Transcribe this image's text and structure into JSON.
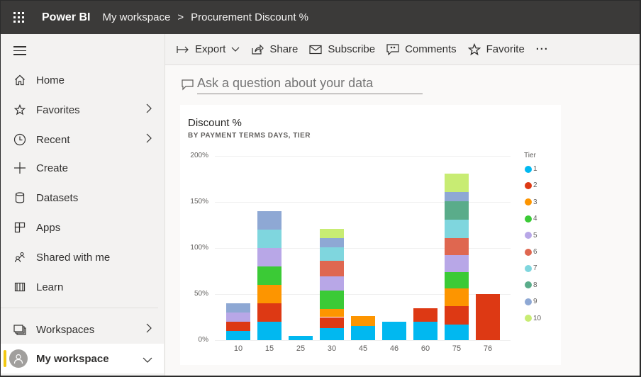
{
  "header": {
    "app_icon": "waffle-icon",
    "brand": "Power BI",
    "breadcrumb": [
      "My workspace",
      "Procurement Discount %"
    ],
    "separator": ">"
  },
  "sidebar": {
    "menu_icon": "hamburger-icon",
    "items": [
      {
        "label": "Home",
        "icon": "home-icon",
        "chevron": false
      },
      {
        "label": "Favorites",
        "icon": "star-icon",
        "chevron": true
      },
      {
        "label": "Recent",
        "icon": "clock-icon",
        "chevron": true
      },
      {
        "label": "Create",
        "icon": "plus-icon",
        "chevron": false
      },
      {
        "label": "Datasets",
        "icon": "database-icon",
        "chevron": false
      },
      {
        "label": "Apps",
        "icon": "apps-icon",
        "chevron": false
      },
      {
        "label": "Shared with me",
        "icon": "people-icon",
        "chevron": false
      },
      {
        "label": "Learn",
        "icon": "book-icon",
        "chevron": false
      }
    ],
    "workspaces_label": "Workspaces",
    "my_workspace_label": "My workspace"
  },
  "toolbar": {
    "export": "Export",
    "share": "Share",
    "subscribe": "Subscribe",
    "comments": "Comments",
    "favorite": "Favorite",
    "more": "···"
  },
  "qa": {
    "placeholder": "Ask a question about your data"
  },
  "colors": {
    "tier_1": "#01b8f0",
    "tier_2": "#dd3914",
    "tier_3": "#fd9500",
    "tier_4": "#3bca36",
    "tier_5": "#b8a7e7",
    "tier_6": "#df6750",
    "tier_7": "#7fd6de",
    "tier_8": "#5aac8a",
    "tier_9": "#8ea8d4",
    "tier_10": "#c8ec73"
  },
  "chart_data": {
    "type": "bar",
    "stacked": true,
    "title": "Discount %",
    "subtitle": "BY PAYMENT TERMS DAYS, TIER",
    "xlabel": "Payment Terms Days",
    "ylabel": "Discount %",
    "ylim": [
      0,
      200
    ],
    "yticks": [
      "0%",
      "50%",
      "100%",
      "150%",
      "200%"
    ],
    "grid": true,
    "legend_title": "Tier",
    "legend_position": "right",
    "categories": [
      "10",
      "15",
      "25",
      "30",
      "45",
      "46",
      "60",
      "75",
      "76"
    ],
    "series": [
      {
        "name": "1",
        "color": "#01b8f0",
        "values": [
          10,
          20,
          5,
          13,
          15,
          20,
          20,
          17,
          0
        ]
      },
      {
        "name": "2",
        "color": "#dd3914",
        "values": [
          10,
          20,
          0,
          12,
          0,
          0,
          15,
          20,
          50
        ]
      },
      {
        "name": "3",
        "color": "#fd9500",
        "values": [
          0,
          20,
          0,
          9,
          11,
          0,
          0,
          19,
          0
        ]
      },
      {
        "name": "4",
        "color": "#3bca36",
        "values": [
          0,
          20,
          0,
          20,
          0,
          0,
          0,
          18,
          0
        ]
      },
      {
        "name": "5",
        "color": "#b8a7e7",
        "values": [
          10,
          20,
          0,
          15,
          0,
          0,
          0,
          18,
          0
        ]
      },
      {
        "name": "6",
        "color": "#df6750",
        "values": [
          0,
          0,
          0,
          17,
          0,
          0,
          0,
          19,
          0
        ]
      },
      {
        "name": "7",
        "color": "#7fd6de",
        "values": [
          0,
          20,
          0,
          15,
          0,
          0,
          0,
          20,
          0
        ]
      },
      {
        "name": "8",
        "color": "#5aac8a",
        "values": [
          0,
          0,
          0,
          0,
          0,
          0,
          0,
          20,
          0
        ]
      },
      {
        "name": "9",
        "color": "#8ea8d4",
        "values": [
          10,
          20,
          0,
          10,
          0,
          0,
          0,
          10,
          0
        ]
      },
      {
        "name": "10",
        "color": "#c8ec73",
        "values": [
          0,
          0,
          0,
          10,
          0,
          0,
          0,
          20,
          0
        ]
      }
    ]
  }
}
